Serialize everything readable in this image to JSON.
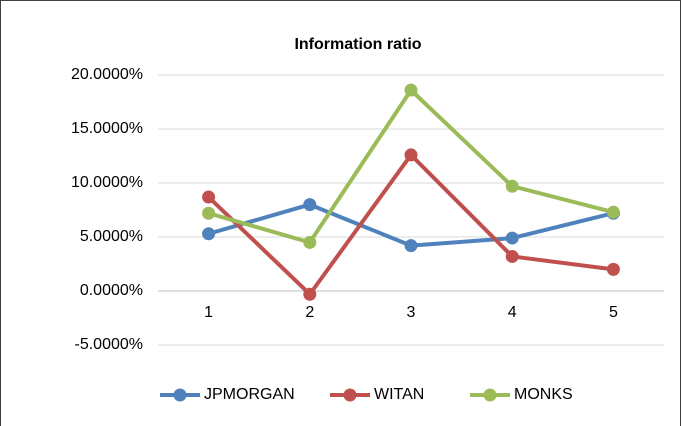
{
  "chart_data": {
    "type": "line",
    "title": "Information ratio",
    "categories": [
      "1",
      "2",
      "3",
      "4",
      "5"
    ],
    "series": [
      {
        "name": "JPMORGAN",
        "color": "#4f81bd",
        "values": [
          5.3,
          8.0,
          4.2,
          4.9,
          7.2
        ]
      },
      {
        "name": "WITAN",
        "color": "#c0504d",
        "values": [
          8.7,
          -0.3,
          12.6,
          3.2,
          2.0
        ]
      },
      {
        "name": "MONKS",
        "color": "#9bbb59",
        "values": [
          7.2,
          4.5,
          18.6,
          9.7,
          7.3
        ]
      }
    ],
    "ylim": [
      -5,
      20
    ],
    "yticks": [
      {
        "value": -5,
        "label": "-5.0000%"
      },
      {
        "value": 0,
        "label": "0.0000%"
      },
      {
        "value": 5,
        "label": "5.0000%"
      },
      {
        "value": 10,
        "label": "10.0000%"
      },
      {
        "value": 15,
        "label": "15.0000%"
      },
      {
        "value": 20,
        "label": "20.0000%"
      }
    ],
    "grid": true,
    "legend": "bottom"
  }
}
